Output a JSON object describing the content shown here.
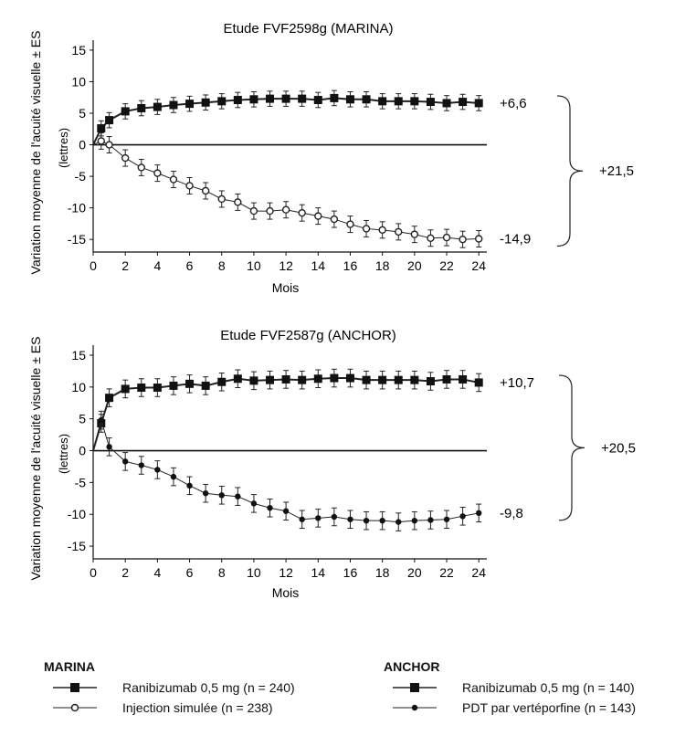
{
  "chart_data": [
    {
      "type": "line",
      "title": "Etude FVF2598g (MARINA)",
      "ylabel": "Variation moyenne de l'acuité visuelle ± ES",
      "yunit": "(lettres)",
      "xlabel": "Mois",
      "xlim": [
        0,
        24.5
      ],
      "ylim": [
        -17,
        16
      ],
      "xticks": [
        "0",
        "2",
        "4",
        "6",
        "8",
        "10",
        "12",
        "14",
        "16",
        "18",
        "20",
        "22",
        "24"
      ],
      "yticks": [
        "15",
        "10",
        "5",
        "0",
        "-5",
        "-10",
        "-15"
      ],
      "grid": false,
      "series": [
        {
          "name": "Ranibizumab 0,5 mg (n = 240)",
          "marker": "filled-square",
          "x": [
            0.5,
            1,
            2,
            3,
            4,
            5,
            6,
            7,
            8,
            9,
            10,
            11,
            12,
            13,
            14,
            15,
            16,
            17,
            18,
            19,
            20,
            21,
            22,
            23,
            24
          ],
          "y": [
            2.6,
            3.9,
            5.3,
            5.8,
            6.0,
            6.3,
            6.5,
            6.7,
            6.9,
            7.1,
            7.2,
            7.3,
            7.3,
            7.3,
            7.1,
            7.4,
            7.2,
            7.2,
            6.9,
            6.9,
            6.9,
            6.8,
            6.6,
            6.8,
            6.6
          ],
          "err": 1.2
        },
        {
          "name": "Injection simulée (n = 238)",
          "marker": "open-circle",
          "x": [
            0.5,
            1,
            2,
            3,
            4,
            5,
            6,
            7,
            8,
            9,
            10,
            11,
            12,
            13,
            14,
            15,
            16,
            17,
            18,
            19,
            20,
            21,
            22,
            23,
            24
          ],
          "y": [
            0.6,
            0.0,
            -2.1,
            -3.6,
            -4.5,
            -5.5,
            -6.5,
            -7.3,
            -8.6,
            -9.1,
            -10.5,
            -10.5,
            -10.3,
            -10.8,
            -11.3,
            -11.8,
            -12.6,
            -13.3,
            -13.5,
            -13.8,
            -14.2,
            -14.8,
            -14.7,
            -15.0,
            -14.9
          ],
          "err": 1.3
        }
      ],
      "annotations": {
        "end_top": "+6,6",
        "end_bottom": "-14,9",
        "difference": "+21,5"
      }
    },
    {
      "type": "line",
      "title": "Etude FVF2587g (ANCHOR)",
      "ylabel": "Variation moyenne de l'acuité visuelle ± ES",
      "yunit": "(lettres)",
      "xlabel": "Mois",
      "xlim": [
        0,
        24.5
      ],
      "ylim": [
        -17,
        16
      ],
      "xticks": [
        "0",
        "2",
        "4",
        "6",
        "8",
        "10",
        "12",
        "14",
        "16",
        "18",
        "20",
        "22",
        "24"
      ],
      "yticks": [
        "15",
        "10",
        "5",
        "0",
        "-5",
        "-10",
        "-15"
      ],
      "grid": false,
      "series": [
        {
          "name": "Ranibizumab 0,5 mg (n = 140)",
          "marker": "filled-square",
          "x": [
            0.5,
            1,
            2,
            3,
            4,
            5,
            6,
            7,
            8,
            9,
            10,
            11,
            12,
            13,
            14,
            15,
            16,
            17,
            18,
            19,
            20,
            21,
            22,
            23,
            24
          ],
          "y": [
            4.3,
            8.3,
            9.7,
            9.9,
            9.9,
            10.2,
            10.5,
            10.2,
            10.8,
            11.3,
            11.0,
            11.1,
            11.2,
            11.1,
            11.3,
            11.4,
            11.4,
            11.1,
            11.1,
            11.1,
            11.1,
            10.9,
            11.2,
            11.2,
            10.7
          ],
          "err": 1.4
        },
        {
          "name": "PDT par vertéporfine (n = 143)",
          "marker": "filled-circle",
          "x": [
            0.5,
            1,
            2,
            3,
            4,
            5,
            6,
            7,
            8,
            9,
            10,
            11,
            12,
            13,
            14,
            15,
            16,
            17,
            18,
            19,
            20,
            21,
            22,
            23,
            24
          ],
          "y": [
            4.8,
            0.6,
            -1.7,
            -2.3,
            -3.0,
            -4.1,
            -5.5,
            -6.7,
            -7.0,
            -7.2,
            -8.3,
            -9.0,
            -9.5,
            -10.8,
            -10.6,
            -10.4,
            -10.8,
            -11.0,
            -11.0,
            -11.2,
            -11.0,
            -10.9,
            -10.8,
            -10.3,
            -9.8
          ],
          "err": 1.4
        }
      ],
      "annotations": {
        "end_top": "+10,7",
        "end_bottom": "-9,8",
        "difference": "+20,5"
      }
    }
  ],
  "legend": {
    "marina": {
      "title": "MARINA",
      "items": [
        {
          "label": "Ranibizumab 0,5 mg (n = 240)",
          "marker": "filled-square"
        },
        {
          "label": "Injection simulée (n = 238)",
          "marker": "open-circle"
        }
      ]
    },
    "anchor": {
      "title": "ANCHOR",
      "items": [
        {
          "label": "Ranibizumab 0,5 mg (n = 140)",
          "marker": "filled-square"
        },
        {
          "label": "PDT par vertéporfine (n = 143)",
          "marker": "filled-circle"
        }
      ]
    }
  }
}
